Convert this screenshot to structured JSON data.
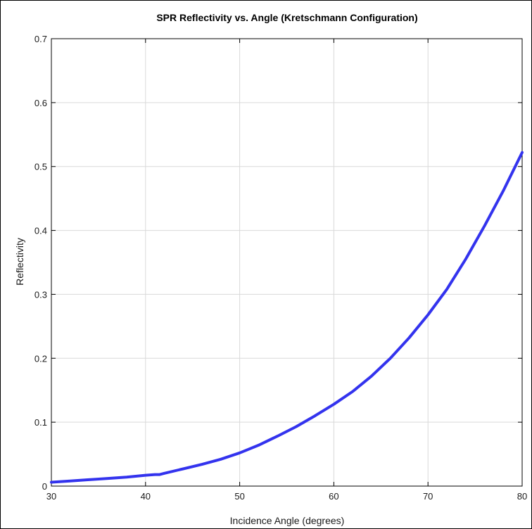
{
  "chart_data": {
    "type": "line",
    "title": "SPR Reflectivity vs. Angle (Kretschmann Configuration)",
    "xlabel": "Incidence Angle (degrees)",
    "ylabel": "Reflectivity",
    "xlim": [
      30,
      80
    ],
    "ylim": [
      0,
      0.7
    ],
    "xticks": [
      30,
      40,
      50,
      60,
      70,
      80
    ],
    "yticks": [
      0,
      0.1,
      0.2,
      0.3,
      0.4,
      0.5,
      0.6,
      0.7
    ],
    "xtick_labels": [
      "30",
      "40",
      "50",
      "60",
      "70",
      "80"
    ],
    "ytick_labels": [
      "0",
      "0.1",
      "0.2",
      "0.3",
      "0.4",
      "0.5",
      "0.6",
      "0.7"
    ],
    "grid": true,
    "line_color": "#3333ee",
    "series": [
      {
        "x": [
          30,
          32,
          34,
          36,
          38,
          40,
          41,
          41.5,
          42,
          44,
          46,
          48,
          50,
          52,
          54,
          56,
          58,
          60,
          62,
          64,
          66,
          68,
          70,
          72,
          74,
          76,
          78,
          80
        ],
        "y": [
          0.006,
          0.008,
          0.01,
          0.012,
          0.014,
          0.017,
          0.018,
          0.018,
          0.02,
          0.027,
          0.034,
          0.042,
          0.052,
          0.064,
          0.078,
          0.093,
          0.11,
          0.128,
          0.148,
          0.172,
          0.2,
          0.232,
          0.268,
          0.308,
          0.355,
          0.407,
          0.462,
          0.522
        ]
      }
    ]
  }
}
